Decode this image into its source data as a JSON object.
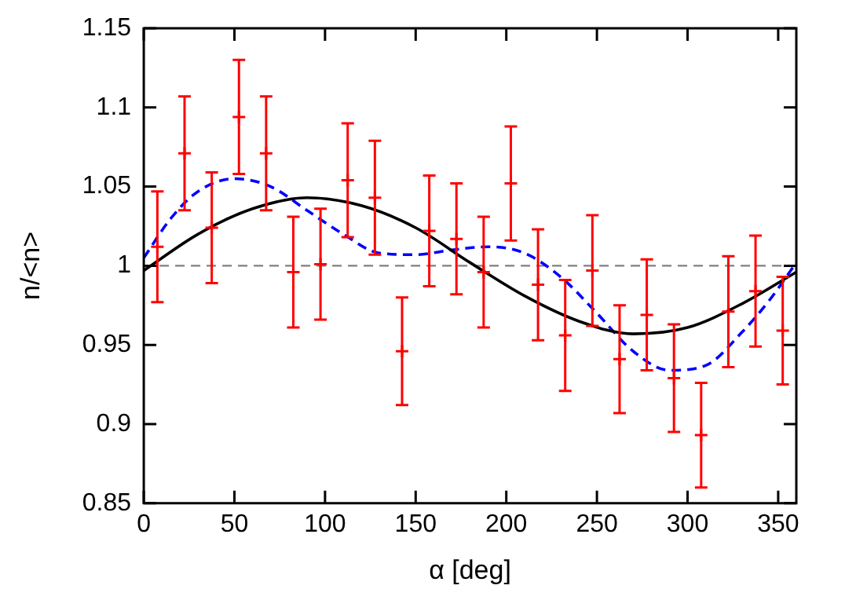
{
  "chart_data": {
    "type": "scatter",
    "xlabel": "α [deg]",
    "ylabel": "n/<n>",
    "xlim": [
      0,
      360
    ],
    "xticks": [
      0,
      50,
      100,
      150,
      200,
      250,
      300,
      350
    ],
    "ylim": [
      0.85,
      1.15
    ],
    "yticks": [
      0.85,
      0.9,
      0.95,
      1,
      1.05,
      1.1,
      1.15
    ],
    "grid": false,
    "legend": false,
    "ref_lines": [
      {
        "axis": "y",
        "value": 1,
        "color": "#808080",
        "line_style": "dashed"
      }
    ],
    "series": [
      {
        "type": "scatter",
        "color": "#ff0000",
        "marker": "cross",
        "x": [
          7.5,
          22.5,
          37.5,
          52.5,
          67.5,
          82.5,
          97.5,
          112.5,
          127.5,
          142.5,
          157.5,
          172.5,
          187.5,
          202.5,
          217.5,
          232.5,
          247.5,
          262.5,
          277.5,
          292.5,
          307.5,
          322.5,
          337.5,
          352.5
        ],
        "values": [
          1.012,
          1.071,
          1.024,
          1.094,
          1.071,
          0.996,
          1.001,
          1.054,
          1.043,
          0.946,
          1.022,
          1.017,
          0.996,
          1.052,
          0.988,
          0.956,
          0.997,
          0.941,
          0.969,
          0.929,
          0.893,
          0.971,
          0.984,
          0.959
        ],
        "errors": [
          0.035,
          0.036,
          0.035,
          0.036,
          0.036,
          0.035,
          0.035,
          0.036,
          0.036,
          0.034,
          0.035,
          0.035,
          0.035,
          0.036,
          0.035,
          0.035,
          0.035,
          0.034,
          0.035,
          0.034,
          0.033,
          0.035,
          0.035,
          0.034
        ]
      },
      {
        "type": "line",
        "color": "#000000",
        "marker": "none",
        "line_style": "solid",
        "x": [
          0,
          30,
          60,
          90,
          120,
          150,
          180,
          210,
          240,
          270,
          300,
          330,
          360
        ],
        "values": [
          0.997,
          1.02,
          1.036,
          1.043,
          1.038,
          1.024,
          1.002,
          0.981,
          0.965,
          0.957,
          0.961,
          0.976,
          0.996
        ]
      },
      {
        "type": "line",
        "color": "#0000ff",
        "marker": "none",
        "line_style": "dashed",
        "x": [
          0,
          15,
          30,
          50,
          70,
          90,
          110,
          130,
          150,
          170,
          190,
          210,
          230,
          250,
          270,
          290,
          310,
          330,
          345,
          360
        ],
        "values": [
          1.005,
          1.03,
          1.047,
          1.055,
          1.05,
          1.035,
          1.02,
          1.008,
          1.007,
          1.01,
          1.012,
          1.008,
          0.993,
          0.97,
          0.946,
          0.934,
          0.937,
          0.958,
          0.978,
          1.002
        ]
      }
    ]
  }
}
